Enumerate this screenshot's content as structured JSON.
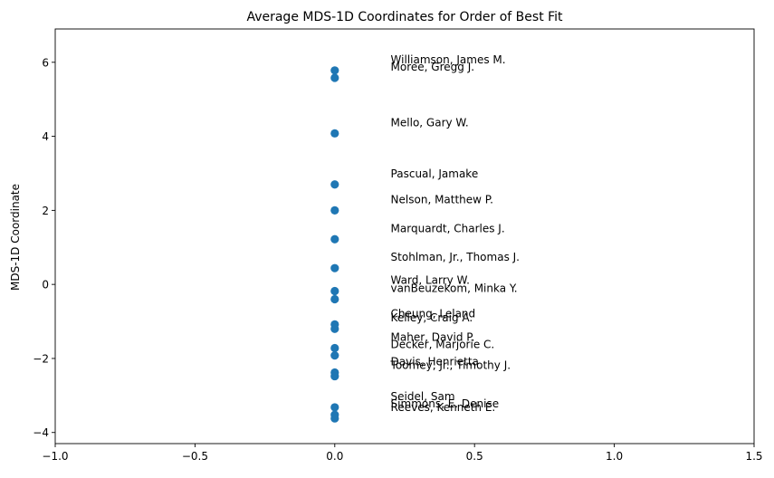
{
  "chart_data": {
    "type": "scatter",
    "title": "Average MDS-1D Coordinates for Order of Best Fit",
    "xlabel": "",
    "ylabel": "MDS-1D Coordinate",
    "xlim": [
      -1.0,
      1.5
    ],
    "ylim": [
      -4.3,
      6.9
    ],
    "xticks": [
      -1.0,
      -0.5,
      0.0,
      0.5,
      1.0,
      1.5
    ],
    "xtick_labels": [
      "−1.0",
      "−0.5",
      "0.0",
      "0.5",
      "1.0",
      "1.5"
    ],
    "yticks": [
      -4,
      -2,
      0,
      2,
      4,
      6
    ],
    "ytick_labels": [
      "−4",
      "−2",
      "0",
      "2",
      "4",
      "6"
    ],
    "grid": false,
    "marker_color": "#1f77b4",
    "points": [
      {
        "x": 0,
        "y": 5.78,
        "label": "Williamson, James M."
      },
      {
        "x": 0,
        "y": 5.58,
        "label": "Moree, Gregg J."
      },
      {
        "x": 0,
        "y": 4.08,
        "label": "Mello, Gary W."
      },
      {
        "x": 0,
        "y": 2.7,
        "label": "Pascual, Jamake"
      },
      {
        "x": 0,
        "y": 2.0,
        "label": "Nelson, Matthew P."
      },
      {
        "x": 0,
        "y": 1.22,
        "label": "Marquardt, Charles J."
      },
      {
        "x": 0,
        "y": 0.44,
        "label": "Stohlman, Jr., Thomas J."
      },
      {
        "x": 0,
        "y": -0.18,
        "label": "Ward, Larry W."
      },
      {
        "x": 0,
        "y": -0.4,
        "label": "vanBeuzekom, Minka Y."
      },
      {
        "x": 0,
        "y": -1.08,
        "label": "Cheung, Leland"
      },
      {
        "x": 0,
        "y": -1.2,
        "label": "Kelley, Craig A."
      },
      {
        "x": 0,
        "y": -1.72,
        "label": "Maher, David P."
      },
      {
        "x": 0,
        "y": -1.92,
        "label": "Decker, Marjorie C."
      },
      {
        "x": 0,
        "y": -2.38,
        "label": "Davis, Henrietta"
      },
      {
        "x": 0,
        "y": -2.48,
        "label": "Toomey, Jr., Timothy J."
      },
      {
        "x": 0,
        "y": -3.32,
        "label": "Seidel, Sam"
      },
      {
        "x": 0,
        "y": -3.52,
        "label": "Simmons, E. Denise"
      },
      {
        "x": 0,
        "y": -3.62,
        "label": "Reeves, Kenneth E."
      }
    ]
  }
}
